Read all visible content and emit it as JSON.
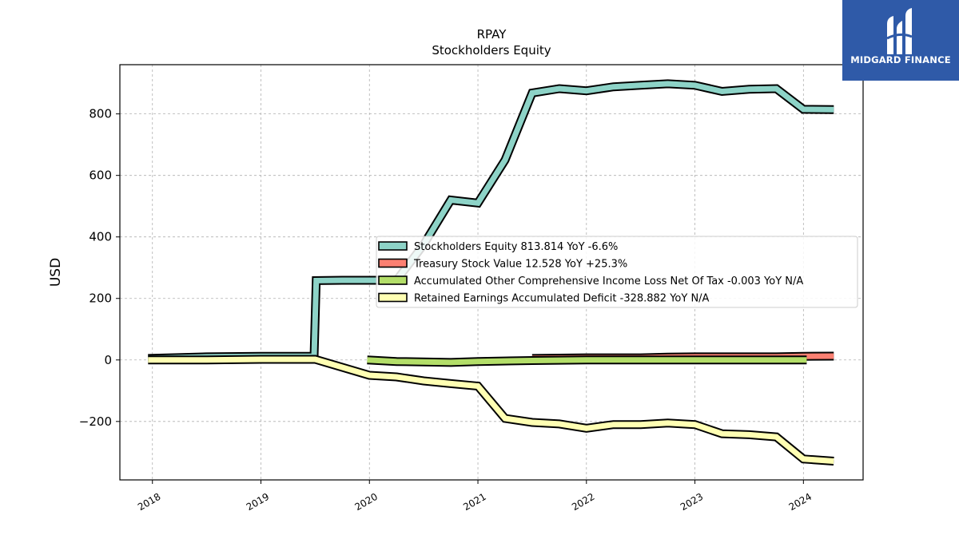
{
  "chart_data": {
    "type": "line",
    "title": "RPAY",
    "subtitle": "Stockholders  Equity",
    "ylabel": "USD",
    "xlabel": "",
    "xlim": [
      2017.7,
      2024.55
    ],
    "ylim": [
      -390,
      960
    ],
    "x_ticks": [
      "2018",
      "2019",
      "2020",
      "2021",
      "2022",
      "2023",
      "2024"
    ],
    "y_ticks": [
      -200,
      0,
      200,
      400,
      600,
      800
    ],
    "y_tick_labels": [
      "−200",
      "0",
      "200",
      "400",
      "600",
      "800"
    ],
    "grid": true,
    "legend_position": "center-right",
    "series": [
      {
        "name": "Stockholders Equity",
        "legend": "Stockholders Equity  813.814 YoY -6.6%",
        "color": "#8dd3c7",
        "x": [
          2017.96,
          2018.5,
          2019.0,
          2019.49,
          2019.51,
          2019.75,
          2020.0,
          2020.25,
          2020.5,
          2020.75,
          2021.0,
          2021.25,
          2021.5,
          2021.75,
          2022.0,
          2022.25,
          2022.5,
          2022.75,
          2023.0,
          2023.25,
          2023.5,
          2023.75,
          2024.0,
          2024.28
        ],
        "y": [
          5,
          10,
          12,
          12,
          258,
          259,
          259,
          259,
          375,
          520,
          510,
          650,
          868,
          882,
          875,
          888,
          893,
          898,
          893,
          873,
          880,
          882,
          815,
          813.814
        ]
      },
      {
        "name": "Treasury Stock Value",
        "legend": "Treasury Stock Value  12.528 YoY +25.3%",
        "color": "#fb8072",
        "x": [
          2021.5,
          2022.0,
          2022.5,
          2022.75,
          2023.0,
          2023.5,
          2023.75,
          2024.0,
          2024.28
        ],
        "y": [
          5,
          7,
          7,
          9,
          10,
          10,
          10,
          12,
          12.528
        ]
      },
      {
        "name": "Accumulated Other Comprehensive Income Loss Net Of Tax",
        "legend": "Accumulated Other Comprehensive Income Loss Net Of Tax  -0.003 YoY N/A",
        "color": "#b3de69",
        "x": [
          2019.98,
          2020.25,
          2020.75,
          2021.0,
          2021.5,
          2022.0,
          2022.5,
          2023.0,
          2023.5,
          2024.03
        ],
        "y": [
          0,
          -5,
          -8,
          -5,
          -2,
          0,
          0,
          0,
          0,
          0
        ]
      },
      {
        "name": "Retained Earnings Accumulated Deficit",
        "legend": "Retained Earnings Accumulated Deficit  -328.882 YoY N/A",
        "color": "#ffffb3",
        "x": [
          2017.96,
          2018.5,
          2019.0,
          2019.5,
          2020.0,
          2020.25,
          2020.5,
          2020.75,
          2021.0,
          2021.25,
          2021.5,
          2021.75,
          2022.0,
          2022.25,
          2022.5,
          2022.75,
          2023.0,
          2023.25,
          2023.5,
          2023.75,
          2024.0,
          2024.28
        ],
        "y": [
          0,
          0,
          2,
          2,
          -50,
          -55,
          -68,
          -77,
          -85,
          -190,
          -203,
          -208,
          -222,
          -210,
          -210,
          -205,
          -210,
          -240,
          -243,
          -250,
          -322,
          -328.882
        ]
      }
    ]
  },
  "logo": {
    "text": "MIDGARD FINANCE",
    "bg_color": "#2f5aa8"
  }
}
